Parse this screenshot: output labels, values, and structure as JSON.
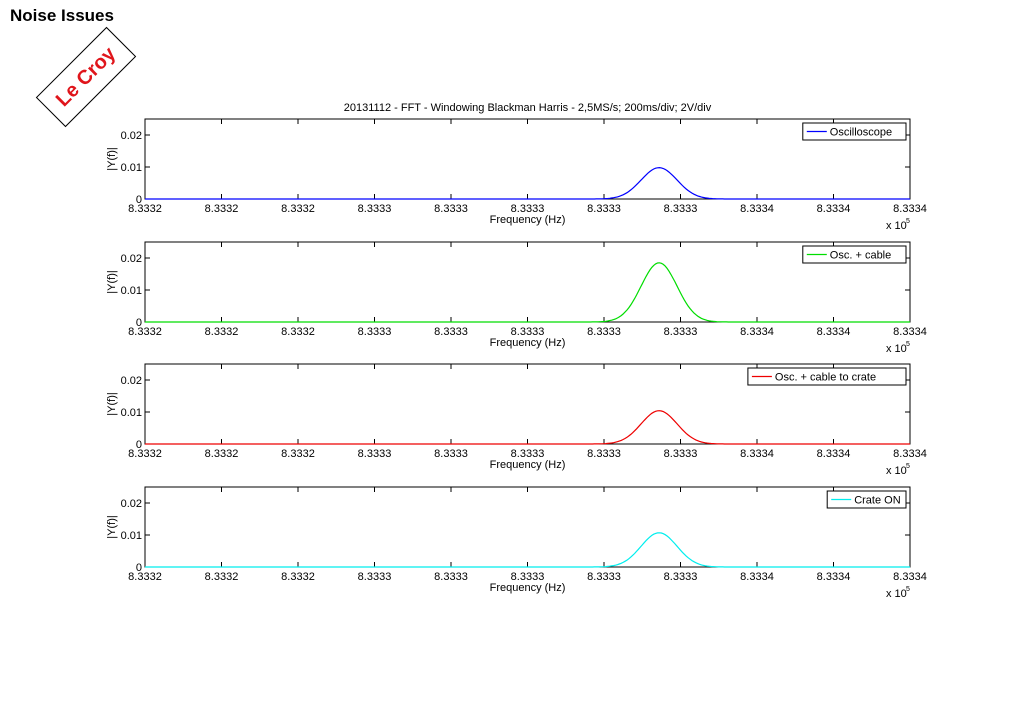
{
  "page": {
    "title": "Noise Issues"
  },
  "stamp": {
    "text": "Le Croy"
  },
  "chart_data": [
    {
      "type": "line",
      "title": "20131112 - FFT - Windowing Blackman Harris - 2,5MS/s; 200ms/div; 2V/div",
      "xlabel": "Frequency (Hz)",
      "ylabel": "|Y(f)|",
      "x_tick_labels": [
        "8.3332",
        "8.3332",
        "8.3332",
        "8.3333",
        "8.3333",
        "8.3333",
        "8.3333",
        "8.3333",
        "8.3334",
        "8.3334",
        "8.3334"
      ],
      "x_multiplier": [
        "x 10",
        "5"
      ],
      "y_ticks": [
        0,
        0.01,
        0.02
      ],
      "y_tick_labels": [
        "0",
        "0.01",
        "0.02"
      ],
      "ylim": [
        0,
        0.025
      ],
      "legend_position": "top-right",
      "series": [
        {
          "name": "Oscilloscope",
          "color": "#0000ff",
          "peak": 0.0098
        }
      ]
    },
    {
      "type": "line",
      "title": "",
      "xlabel": "Frequency (Hz)",
      "ylabel": "|Y(f)|",
      "x_tick_labels": [
        "8.3332",
        "8.3332",
        "8.3332",
        "8.3333",
        "8.3333",
        "8.3333",
        "8.3333",
        "8.3333",
        "8.3334",
        "8.3334",
        "8.3334"
      ],
      "x_multiplier": [
        "x 10",
        "5"
      ],
      "y_ticks": [
        0,
        0.01,
        0.02
      ],
      "y_tick_labels": [
        "0",
        "0.01",
        "0.02"
      ],
      "ylim": [
        0,
        0.025
      ],
      "legend_position": "top-right",
      "series": [
        {
          "name": "Osc. + cable",
          "color": "#00dd00",
          "peak": 0.0185
        }
      ]
    },
    {
      "type": "line",
      "title": "",
      "xlabel": "Frequency (Hz)",
      "ylabel": "|Y(f)|",
      "x_tick_labels": [
        "8.3332",
        "8.3332",
        "8.3332",
        "8.3333",
        "8.3333",
        "8.3333",
        "8.3333",
        "8.3333",
        "8.3334",
        "8.3334",
        "8.3334"
      ],
      "x_multiplier": [
        "x 10",
        "5"
      ],
      "y_ticks": [
        0,
        0.01,
        0.02
      ],
      "y_tick_labels": [
        "0",
        "0.01",
        "0.02"
      ],
      "ylim": [
        0,
        0.025
      ],
      "legend_position": "top-right",
      "series": [
        {
          "name": "Osc. + cable to crate",
          "color": "#ee0000",
          "peak": 0.0104
        }
      ]
    },
    {
      "type": "line",
      "title": "",
      "xlabel": "Frequency (Hz)",
      "ylabel": "|Y(f)|",
      "x_tick_labels": [
        "8.3332",
        "8.3332",
        "8.3332",
        "8.3333",
        "8.3333",
        "8.3333",
        "8.3333",
        "8.3333",
        "8.3334",
        "8.3334",
        "8.3334"
      ],
      "x_multiplier": [
        "x 10",
        "5"
      ],
      "y_ticks": [
        0,
        0.01,
        0.02
      ],
      "y_tick_labels": [
        "0",
        "0.01",
        "0.02"
      ],
      "ylim": [
        0,
        0.025
      ],
      "legend_position": "top-right",
      "series": [
        {
          "name": "Crate ON",
          "color": "#00eeee",
          "peak": 0.0107
        }
      ]
    }
  ]
}
